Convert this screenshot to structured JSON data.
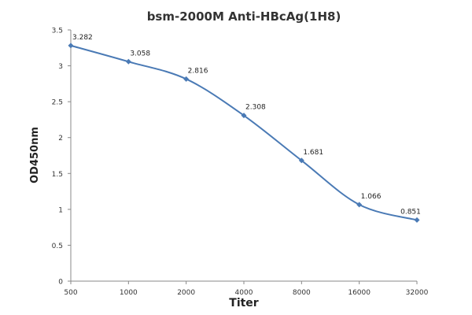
{
  "chart_data": {
    "type": "line",
    "title": "bsm-2000M Anti-HBcAg(1H8)",
    "xlabel": "Titer",
    "ylabel": "OD450nm",
    "categories": [
      "500",
      "1000",
      "2000",
      "4000",
      "8000",
      "16000",
      "32000"
    ],
    "series": [
      {
        "name": "OD450nm",
        "values": [
          3.282,
          3.058,
          2.816,
          2.308,
          1.681,
          1.066,
          0.851
        ],
        "labels": [
          "3.282",
          "3.058",
          "2.816",
          "2.308",
          "1.681",
          "1.066",
          "0.851"
        ]
      }
    ],
    "yticks": [
      "0",
      "0.5",
      "1",
      "1.5",
      "2",
      "2.5",
      "3",
      "3.5"
    ],
    "ylim": [
      0,
      3.5
    ],
    "grid": false,
    "line_color": "#4a7ab5",
    "marker_color": "#4a7ab5"
  }
}
